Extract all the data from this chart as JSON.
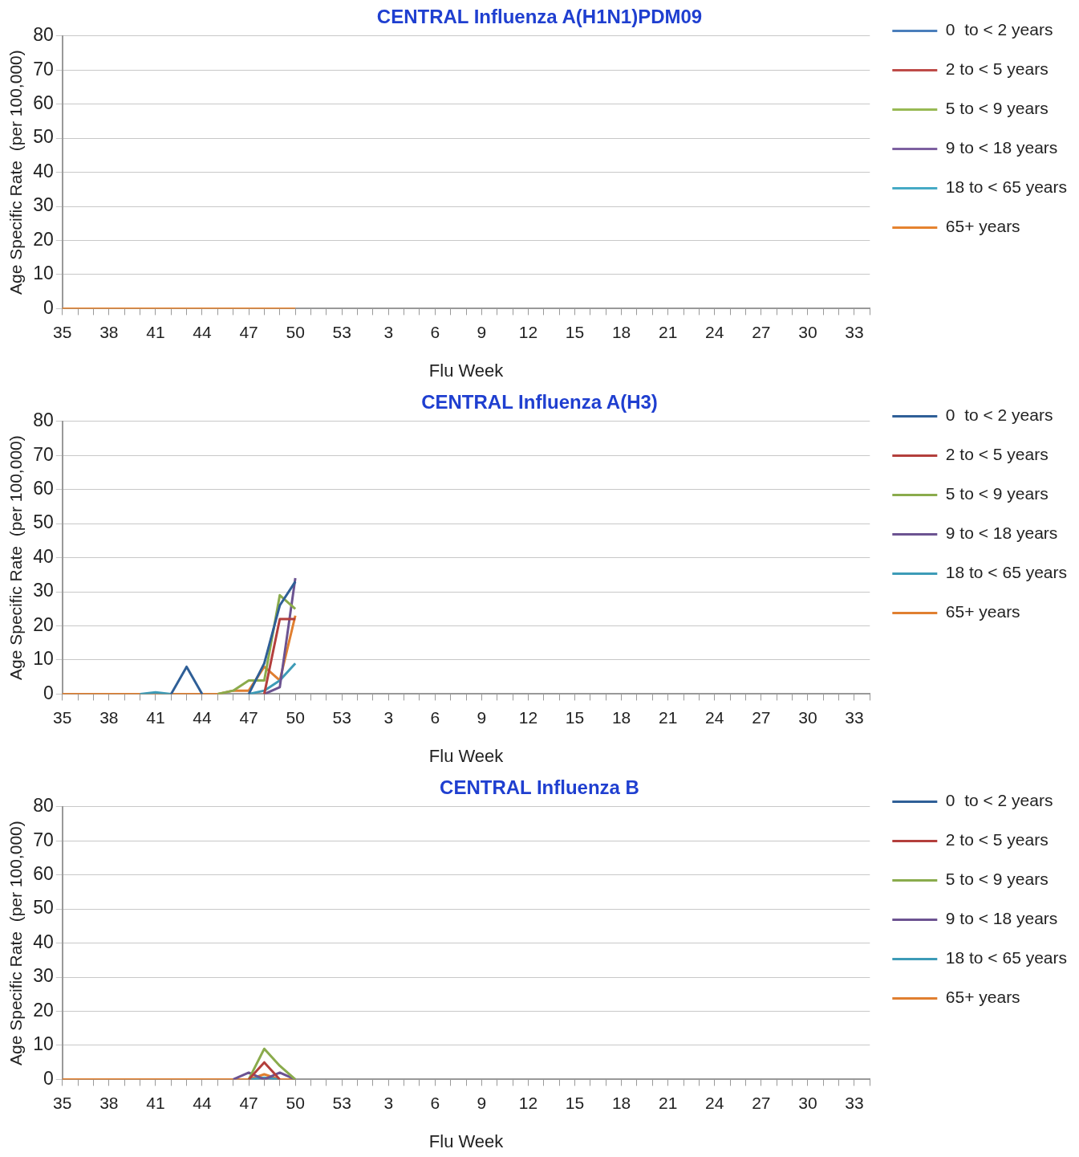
{
  "chart_data": [
    {
      "type": "line",
      "title": "CENTRAL Influenza A(H1N1)PDM09",
      "xlabel": "Flu Week",
      "ylabel": "Age Specific Rate  (per 100,000)",
      "categories": [
        "35",
        null,
        null,
        "38",
        null,
        null,
        "41",
        null,
        null,
        "44",
        null,
        null,
        "47",
        null,
        null,
        "50",
        null,
        null,
        "53",
        null,
        null,
        "3",
        null,
        null,
        "6",
        null,
        null,
        "9",
        null,
        null,
        "12",
        null,
        null,
        "15",
        null,
        null,
        "18",
        null,
        null,
        "21",
        null,
        null,
        "24",
        null,
        null,
        "27",
        null,
        null,
        "30",
        null,
        null,
        "33",
        null
      ],
      "ylim": [
        0,
        80
      ],
      "yticks": [
        0,
        10,
        20,
        30,
        40,
        50,
        60,
        70,
        80
      ],
      "grid": "y",
      "legend": "right",
      "marker": "none",
      "line_style": "solid",
      "series": [
        {
          "name": "0  to < 2 years",
          "color": "#4a7ebb",
          "values": [
            null,
            null,
            null,
            null,
            null,
            null,
            null,
            null,
            null,
            null,
            null,
            null,
            null,
            null,
            null,
            null,
            null,
            null,
            null,
            null,
            null,
            null,
            null,
            null,
            null,
            null,
            null,
            null,
            null,
            null,
            null,
            null,
            null,
            null,
            null,
            null,
            null,
            null,
            null,
            null,
            null,
            null,
            null,
            null,
            null,
            null,
            null,
            null,
            null,
            null,
            null,
            null,
            null
          ]
        },
        {
          "name": "2 to < 5 years",
          "color": "#be4b48",
          "values": [
            null,
            null,
            null,
            null,
            null,
            null,
            null,
            null,
            null,
            null,
            null,
            null,
            null,
            null,
            null,
            null,
            null,
            null,
            null,
            null,
            null,
            null,
            null,
            null,
            null,
            null,
            null,
            null,
            null,
            null,
            null,
            null,
            null,
            null,
            null,
            null,
            null,
            null,
            null,
            null,
            null,
            null,
            null,
            null,
            null,
            null,
            null,
            null,
            null,
            null,
            null,
            null,
            null
          ]
        },
        {
          "name": "5 to < 9 years",
          "color": "#98b954",
          "values": [
            null,
            null,
            null,
            null,
            null,
            null,
            null,
            null,
            null,
            null,
            null,
            null,
            null,
            null,
            null,
            null,
            null,
            null,
            null,
            null,
            null,
            null,
            null,
            null,
            null,
            null,
            null,
            null,
            null,
            null,
            null,
            null,
            null,
            null,
            null,
            null,
            null,
            null,
            null,
            null,
            null,
            null,
            null,
            null,
            null,
            null,
            null,
            null,
            null,
            null,
            null,
            null,
            null
          ]
        },
        {
          "name": "9 to < 18 years",
          "color": "#7d60a0",
          "values": [
            null,
            null,
            null,
            null,
            null,
            null,
            null,
            null,
            null,
            null,
            null,
            null,
            null,
            null,
            null,
            null,
            null,
            null,
            null,
            null,
            null,
            null,
            null,
            null,
            null,
            null,
            null,
            null,
            null,
            null,
            null,
            null,
            null,
            null,
            null,
            null,
            null,
            null,
            null,
            null,
            null,
            null,
            null,
            null,
            null,
            null,
            null,
            null,
            null,
            null,
            null,
            null,
            null
          ]
        },
        {
          "name": "18 to < 65 years",
          "color": "#46aac5",
          "values": [
            null,
            null,
            null,
            null,
            null,
            null,
            null,
            null,
            null,
            null,
            null,
            null,
            null,
            null,
            null,
            null,
            null,
            null,
            null,
            null,
            null,
            null,
            null,
            null,
            null,
            null,
            null,
            null,
            null,
            null,
            null,
            null,
            null,
            null,
            null,
            null,
            null,
            null,
            null,
            null,
            null,
            null,
            null,
            null,
            null,
            null,
            null,
            null,
            null,
            null,
            null,
            null,
            null
          ]
        },
        {
          "name": "65+ years",
          "color": "#e5832f",
          "values": [
            0,
            0,
            0,
            0,
            0,
            0,
            0,
            0,
            0,
            0,
            0,
            0,
            0,
            0,
            0,
            0,
            null,
            null,
            null,
            null,
            null,
            null,
            null,
            null,
            null,
            null,
            null,
            null,
            null,
            null,
            null,
            null,
            null,
            null,
            null,
            null,
            null,
            null,
            null,
            null,
            null,
            null,
            null,
            null,
            null,
            null,
            null,
            null,
            null,
            null,
            null,
            null,
            null
          ]
        }
      ]
    },
    {
      "type": "line",
      "title": "CENTRAL Influenza A(H3)",
      "xlabel": "Flu Week",
      "ylabel": "Age Specific Rate  (per 100,000)",
      "categories": [
        "35",
        null,
        null,
        "38",
        null,
        null,
        "41",
        null,
        null,
        "44",
        null,
        null,
        "47",
        null,
        null,
        "50",
        null,
        null,
        "53",
        null,
        null,
        "3",
        null,
        null,
        "6",
        null,
        null,
        "9",
        null,
        null,
        "12",
        null,
        null,
        "15",
        null,
        null,
        "18",
        null,
        null,
        "21",
        null,
        null,
        "24",
        null,
        null,
        "27",
        null,
        null,
        "30",
        null,
        null,
        "33",
        null
      ],
      "ylim": [
        0,
        80
      ],
      "yticks": [
        0,
        10,
        20,
        30,
        40,
        50,
        60,
        70,
        80
      ],
      "grid": "y",
      "legend": "right",
      "marker": "none",
      "line_style": "solid",
      "series": [
        {
          "name": "0  to < 2 years",
          "color": "#2f5f97",
          "values": [
            null,
            null,
            null,
            null,
            null,
            null,
            null,
            0,
            8,
            0,
            null,
            null,
            0,
            9,
            26,
            33,
            null,
            null,
            null,
            null,
            null,
            null,
            null,
            null,
            null,
            null,
            null,
            null,
            null,
            null,
            null,
            null,
            null,
            null,
            null,
            null,
            null,
            null,
            null,
            null,
            null,
            null,
            null,
            null,
            null,
            null,
            null,
            null,
            null,
            null,
            null,
            null,
            null
          ]
        },
        {
          "name": "2 to < 5 years",
          "color": "#b33f3c",
          "values": [
            null,
            null,
            null,
            null,
            null,
            null,
            null,
            null,
            null,
            null,
            null,
            null,
            null,
            0,
            22,
            22,
            null,
            null,
            null,
            null,
            null,
            null,
            null,
            null,
            null,
            null,
            null,
            null,
            null,
            null,
            null,
            null,
            null,
            null,
            null,
            null,
            null,
            null,
            null,
            null,
            null,
            null,
            null,
            null,
            null,
            null,
            null,
            null,
            null,
            null,
            null,
            null,
            null
          ]
        },
        {
          "name": "5 to < 9 years",
          "color": "#8aab4c",
          "values": [
            null,
            null,
            null,
            null,
            null,
            null,
            null,
            null,
            null,
            null,
            0,
            1,
            4,
            4,
            29,
            25,
            null,
            null,
            null,
            null,
            null,
            null,
            null,
            null,
            null,
            null,
            null,
            null,
            null,
            null,
            null,
            null,
            null,
            null,
            null,
            null,
            null,
            null,
            null,
            null,
            null,
            null,
            null,
            null,
            null,
            null,
            null,
            null,
            null,
            null,
            null,
            null,
            null
          ]
        },
        {
          "name": "9 to < 18 years",
          "color": "#6c5391",
          "values": [
            null,
            null,
            null,
            null,
            null,
            null,
            null,
            null,
            null,
            null,
            null,
            null,
            null,
            0,
            2,
            34,
            null,
            null,
            null,
            null,
            null,
            null,
            null,
            null,
            null,
            null,
            null,
            null,
            null,
            null,
            null,
            null,
            null,
            null,
            null,
            null,
            null,
            null,
            null,
            null,
            null,
            null,
            null,
            null,
            null,
            null,
            null,
            null,
            null,
            null,
            null,
            null,
            null
          ]
        },
        {
          "name": "18 to < 65 years",
          "color": "#3d9bb7",
          "values": [
            null,
            null,
            null,
            null,
            null,
            0,
            0.5,
            0,
            null,
            null,
            null,
            null,
            0,
            1,
            4,
            9,
            null,
            null,
            null,
            null,
            null,
            null,
            null,
            null,
            null,
            null,
            null,
            null,
            null,
            null,
            null,
            null,
            null,
            null,
            null,
            null,
            null,
            null,
            null,
            null,
            null,
            null,
            null,
            null,
            null,
            null,
            null,
            null,
            null,
            null,
            null,
            null,
            null
          ]
        },
        {
          "name": "65+ years",
          "color": "#e07f30",
          "values": [
            0,
            0,
            0,
            0,
            0,
            0,
            0,
            0,
            0,
            0,
            0,
            1,
            1,
            8,
            4,
            23,
            null,
            null,
            null,
            null,
            null,
            null,
            null,
            null,
            null,
            null,
            null,
            null,
            null,
            null,
            null,
            null,
            null,
            null,
            null,
            null,
            null,
            null,
            null,
            null,
            null,
            null,
            null,
            null,
            null,
            null,
            null,
            null,
            null,
            null,
            null,
            null,
            null
          ]
        }
      ]
    },
    {
      "type": "line",
      "title": "CENTRAL Influenza B",
      "xlabel": "Flu Week",
      "ylabel": "Age Specific Rate  (per 100,000)",
      "categories": [
        "35",
        null,
        null,
        "38",
        null,
        null,
        "41",
        null,
        null,
        "44",
        null,
        null,
        "47",
        null,
        null,
        "50",
        null,
        null,
        "53",
        null,
        null,
        "3",
        null,
        null,
        "6",
        null,
        null,
        "9",
        null,
        null,
        "12",
        null,
        null,
        "15",
        null,
        null,
        "18",
        null,
        null,
        "21",
        null,
        null,
        "24",
        null,
        null,
        "27",
        null,
        null,
        "30",
        null,
        null,
        "33",
        null
      ],
      "ylim": [
        0,
        80
      ],
      "yticks": [
        0,
        10,
        20,
        30,
        40,
        50,
        60,
        70,
        80
      ],
      "grid": "y",
      "legend": "right",
      "marker": "none",
      "line_style": "solid",
      "series": [
        {
          "name": "0  to < 2 years",
          "color": "#2f5f97",
          "values": [
            null,
            null,
            null,
            null,
            null,
            null,
            null,
            null,
            null,
            null,
            null,
            null,
            null,
            null,
            null,
            null,
            null,
            null,
            null,
            null,
            null,
            null,
            null,
            null,
            null,
            null,
            null,
            null,
            null,
            null,
            null,
            null,
            null,
            null,
            null,
            null,
            null,
            null,
            null,
            null,
            null,
            null,
            null,
            null,
            null,
            null,
            null,
            null,
            null,
            null,
            null,
            null,
            null
          ]
        },
        {
          "name": "2 to < 5 years",
          "color": "#b33f3c",
          "values": [
            null,
            null,
            null,
            null,
            null,
            null,
            null,
            null,
            null,
            null,
            null,
            null,
            0,
            5,
            0,
            null,
            null,
            null,
            null,
            null,
            null,
            null,
            null,
            null,
            null,
            null,
            null,
            null,
            null,
            null,
            null,
            null,
            null,
            null,
            null,
            null,
            null,
            null,
            null,
            null,
            null,
            null,
            null,
            null,
            null,
            null,
            null,
            null,
            null,
            null,
            null,
            null,
            null
          ]
        },
        {
          "name": "5 to < 9 years",
          "color": "#8aab4c",
          "values": [
            null,
            null,
            null,
            null,
            null,
            null,
            null,
            null,
            null,
            null,
            null,
            null,
            0,
            9,
            4,
            0,
            null,
            null,
            null,
            null,
            null,
            null,
            null,
            null,
            null,
            null,
            null,
            null,
            null,
            null,
            null,
            null,
            null,
            null,
            null,
            null,
            null,
            null,
            null,
            null,
            null,
            null,
            null,
            null,
            null,
            null,
            null,
            null,
            null,
            null,
            null,
            null,
            null
          ]
        },
        {
          "name": "9 to < 18 years",
          "color": "#6c5391",
          "values": [
            null,
            null,
            null,
            null,
            null,
            null,
            null,
            null,
            null,
            null,
            null,
            0,
            2,
            0,
            2,
            0,
            null,
            null,
            null,
            null,
            null,
            null,
            null,
            null,
            null,
            null,
            null,
            null,
            null,
            null,
            null,
            null,
            null,
            null,
            null,
            null,
            null,
            null,
            null,
            null,
            null,
            null,
            null,
            null,
            null,
            null,
            null,
            null,
            null,
            null,
            null,
            null,
            null
          ]
        },
        {
          "name": "18 to < 65 years",
          "color": "#3d9bb7",
          "values": [
            null,
            null,
            null,
            null,
            null,
            null,
            null,
            null,
            null,
            null,
            null,
            null,
            0,
            0.5,
            0,
            null,
            null,
            null,
            null,
            null,
            null,
            null,
            null,
            null,
            null,
            null,
            null,
            null,
            null,
            null,
            null,
            null,
            null,
            null,
            null,
            null,
            null,
            null,
            null,
            null,
            null,
            null,
            null,
            null,
            null,
            null,
            null,
            null,
            null,
            null,
            null,
            null,
            null
          ]
        },
        {
          "name": "65+ years",
          "color": "#e07f30",
          "values": [
            0,
            0,
            0,
            0,
            0,
            0,
            0,
            0,
            0,
            0,
            0,
            0,
            0,
            1.5,
            0,
            0,
            null,
            null,
            null,
            null,
            null,
            null,
            null,
            null,
            null,
            null,
            null,
            null,
            null,
            null,
            null,
            null,
            null,
            null,
            null,
            null,
            null,
            null,
            null,
            null,
            null,
            null,
            null,
            null,
            null,
            null,
            null,
            null,
            null,
            null,
            null,
            null,
            null
          ]
        }
      ]
    }
  ]
}
